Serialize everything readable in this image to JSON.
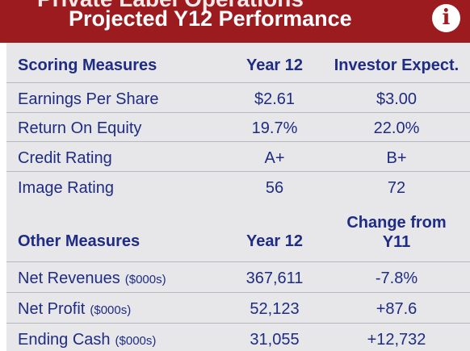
{
  "header": {
    "ghost_title": "Private Label Operations",
    "title": "Projected Y12 Performance",
    "info_icon": "i"
  },
  "scoring": {
    "headers": [
      "Scoring Measures",
      "Year 12",
      "Investor Expect."
    ],
    "rows": [
      {
        "label": "Earnings Per Share",
        "year12": "$2.61",
        "expect": "$3.00"
      },
      {
        "label": "Return On Equity",
        "year12": "19.7%",
        "expect": "22.0%"
      },
      {
        "label": "Credit Rating",
        "year12": "A+",
        "expect": "B+"
      },
      {
        "label": "Image Rating",
        "year12": "56",
        "expect": "72"
      }
    ]
  },
  "other": {
    "headers": [
      "Other Measures",
      "Year 12",
      "Change from",
      "Y11"
    ],
    "rows": [
      {
        "label": "Net Revenues",
        "unit": "($000s)",
        "year12": "367,611",
        "change": "-7.8%"
      },
      {
        "label": "Net Profit",
        "unit": "($000s)",
        "year12": "52,123",
        "change": "+87.6"
      },
      {
        "label": "Ending Cash",
        "unit": "($000s)",
        "year12": "31,055",
        "change": "+12,732"
      }
    ]
  },
  "colors": {
    "header_bg": "#9b1b1e",
    "text": "#1f2c83",
    "panel_bg": "#e7e7ea"
  }
}
